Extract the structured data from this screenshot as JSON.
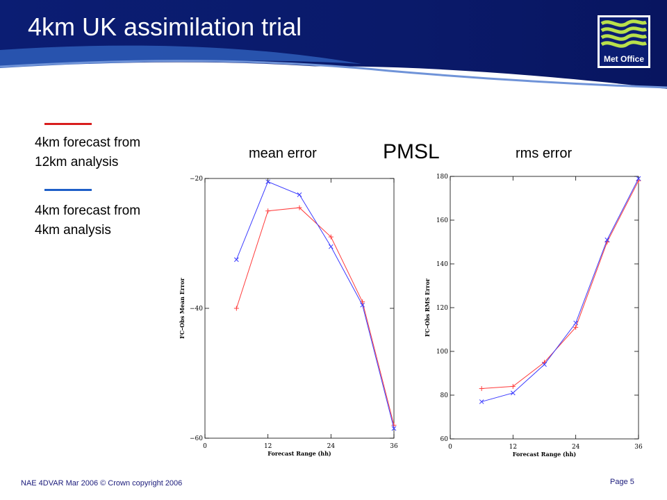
{
  "slide": {
    "title": "4km UK assimilation trial",
    "logo_text": "Met Office",
    "footer_left": "NAE 4DVAR Mar 2006 © Crown copyright 2006",
    "footer_right": "Page 5",
    "center_label": "PMSL",
    "colors": {
      "header_dark": "#0a1a6e",
      "header_mid": "#2a58b8",
      "red": "#d81e1e",
      "blue": "#1e5fc8"
    }
  },
  "legend": [
    {
      "line1": "4km forecast from",
      "line2": "12km analysis",
      "color": "#d81e1e"
    },
    {
      "line1": "4km forecast from",
      "line2": "4km analysis",
      "color": "#1e5fc8"
    }
  ],
  "chart_data": [
    {
      "type": "line",
      "caption": "mean error",
      "xlabel": "Forecast Range (hh)",
      "ylabel": "FC–Obs Mean Error",
      "xlim": [
        0,
        36
      ],
      "ylim": [
        -60,
        -20
      ],
      "xticks": [
        0,
        12,
        24,
        36
      ],
      "yticks": [
        -60,
        -40,
        -20
      ],
      "series": [
        {
          "color": "#ff3a3a",
          "marker": "+",
          "x": [
            6,
            12,
            18,
            24,
            30,
            36
          ],
          "y": [
            -40,
            -25,
            -24.5,
            -29,
            -39,
            -58
          ]
        },
        {
          "color": "#3a3aff",
          "marker": "x",
          "x": [
            6,
            12,
            18,
            24,
            30,
            36
          ],
          "y": [
            -32.5,
            -20.5,
            -22.5,
            -30.5,
            -39.5,
            -58.5
          ]
        }
      ]
    },
    {
      "type": "line",
      "caption": "rms error",
      "xlabel": "Forecast Range (hh)",
      "ylabel": "FC–Obs RMS Error",
      "xlim": [
        0,
        36
      ],
      "ylim": [
        60,
        180
      ],
      "xticks": [
        0,
        12,
        24,
        36
      ],
      "yticks": [
        60,
        80,
        100,
        120,
        140,
        160,
        180
      ],
      "series": [
        {
          "color": "#ff3a3a",
          "marker": "+",
          "x": [
            6,
            12,
            18,
            24,
            30,
            36
          ],
          "y": [
            83,
            84,
            95,
            111,
            150,
            178
          ]
        },
        {
          "color": "#3a3aff",
          "marker": "x",
          "x": [
            6,
            12,
            18,
            24,
            30,
            36
          ],
          "y": [
            77,
            81,
            94,
            113,
            151,
            179
          ]
        }
      ]
    }
  ]
}
